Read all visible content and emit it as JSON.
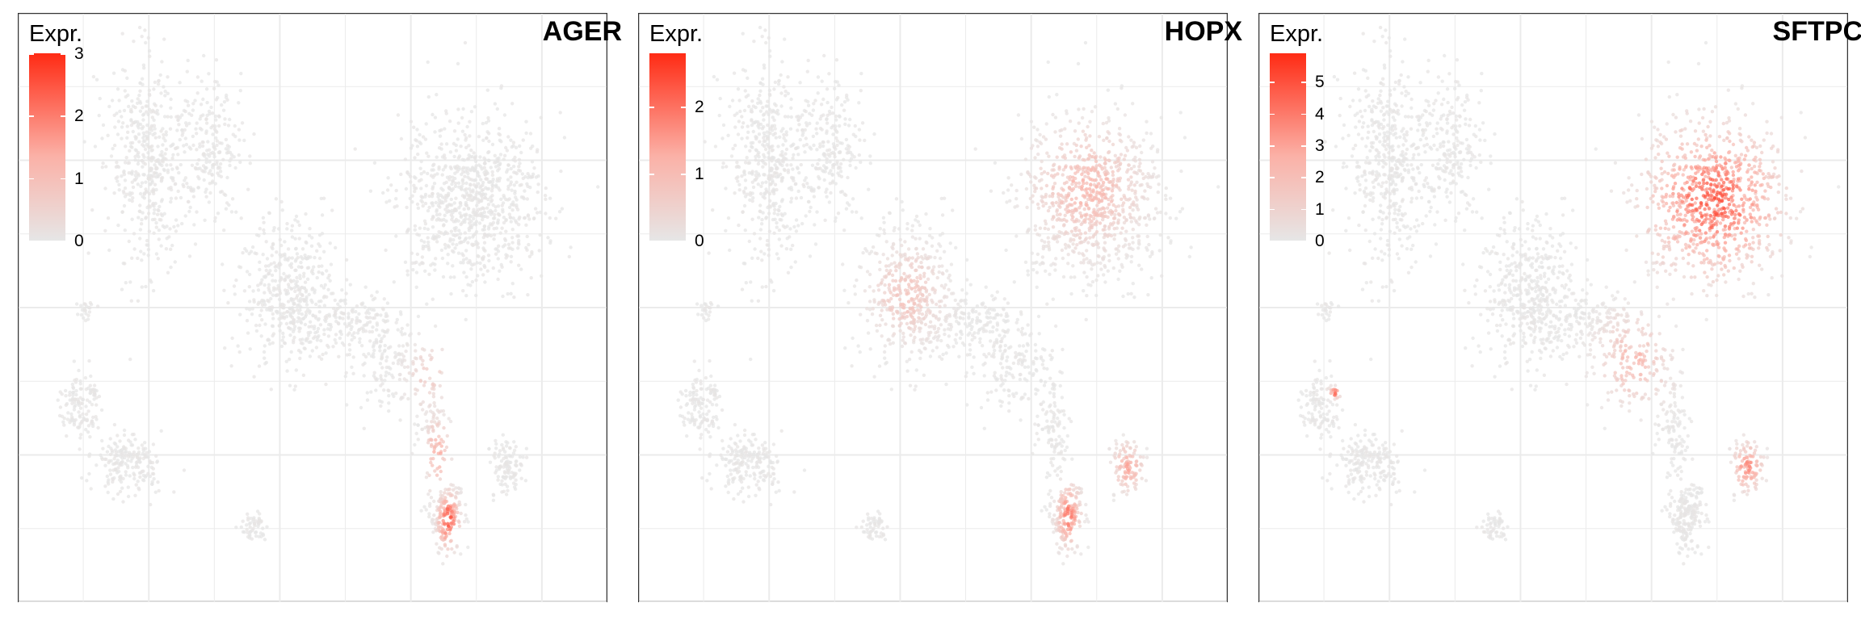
{
  "chart_data": [
    {
      "type": "scatter",
      "title": "AGER",
      "legend": {
        "title": "Expr.",
        "ticks": [
          0,
          1,
          2,
          3
        ],
        "range": [
          0,
          3
        ],
        "placement": "top-left"
      },
      "colors": {
        "low": "#e6e6e6",
        "high": "#ff2b14"
      },
      "grid": true,
      "hotspots": [
        {
          "x": 0.51,
          "y": -0.8,
          "sx": 0.035,
          "sy": 0.09,
          "level": 0.95,
          "weight": 0.1
        },
        {
          "x": 0.47,
          "y": -0.55,
          "sx": 0.04,
          "sy": 0.12,
          "level": 0.55,
          "weight": 0.05
        },
        {
          "x": 0.44,
          "y": -0.25,
          "sx": 0.08,
          "sy": 0.12,
          "level": 0.25,
          "weight": 0.0
        }
      ]
    },
    {
      "type": "scatter",
      "title": "HOPX",
      "legend": {
        "title": "Expr.",
        "ticks": [
          0,
          1,
          2
        ],
        "range": [
          0,
          2.8
        ],
        "placement": "top-left"
      },
      "colors": {
        "low": "#e6e6e6",
        "high": "#ff2b14"
      },
      "grid": true,
      "hotspots": [
        {
          "x": 0.58,
          "y": 0.45,
          "sx": 0.18,
          "sy": 0.2,
          "level": 0.45,
          "weight": 0.0
        },
        {
          "x": -0.1,
          "y": 0.05,
          "sx": 0.12,
          "sy": 0.15,
          "level": 0.35,
          "weight": 0.0
        },
        {
          "x": 0.51,
          "y": -0.78,
          "sx": 0.04,
          "sy": 0.1,
          "level": 0.75,
          "weight": 0.03
        },
        {
          "x": 0.73,
          "y": -0.6,
          "sx": 0.05,
          "sy": 0.08,
          "level": 0.55,
          "weight": 0.0
        }
      ]
    },
    {
      "type": "scatter",
      "title": "SFTPC",
      "legend": {
        "title": "Expr.",
        "ticks": [
          0,
          1,
          2,
          3,
          4,
          5
        ],
        "range": [
          0,
          5.9
        ],
        "placement": "top-left"
      },
      "colors": {
        "low": "#e6e6e6",
        "high": "#ff2b14"
      },
      "grid": true,
      "hotspots": [
        {
          "x": 0.6,
          "y": 0.4,
          "sx": 0.22,
          "sy": 0.24,
          "level": 0.9,
          "weight": 0.0
        },
        {
          "x": 0.73,
          "y": -0.6,
          "sx": 0.05,
          "sy": 0.08,
          "level": 0.7,
          "weight": 0.0
        },
        {
          "x": 0.3,
          "y": -0.2,
          "sx": 0.12,
          "sy": 0.15,
          "level": 0.45,
          "weight": 0.0
        },
        {
          "x": -0.82,
          "y": -0.32,
          "sx": 0.02,
          "sy": 0.02,
          "level": 0.85,
          "weight": 0.0
        }
      ]
    }
  ]
}
